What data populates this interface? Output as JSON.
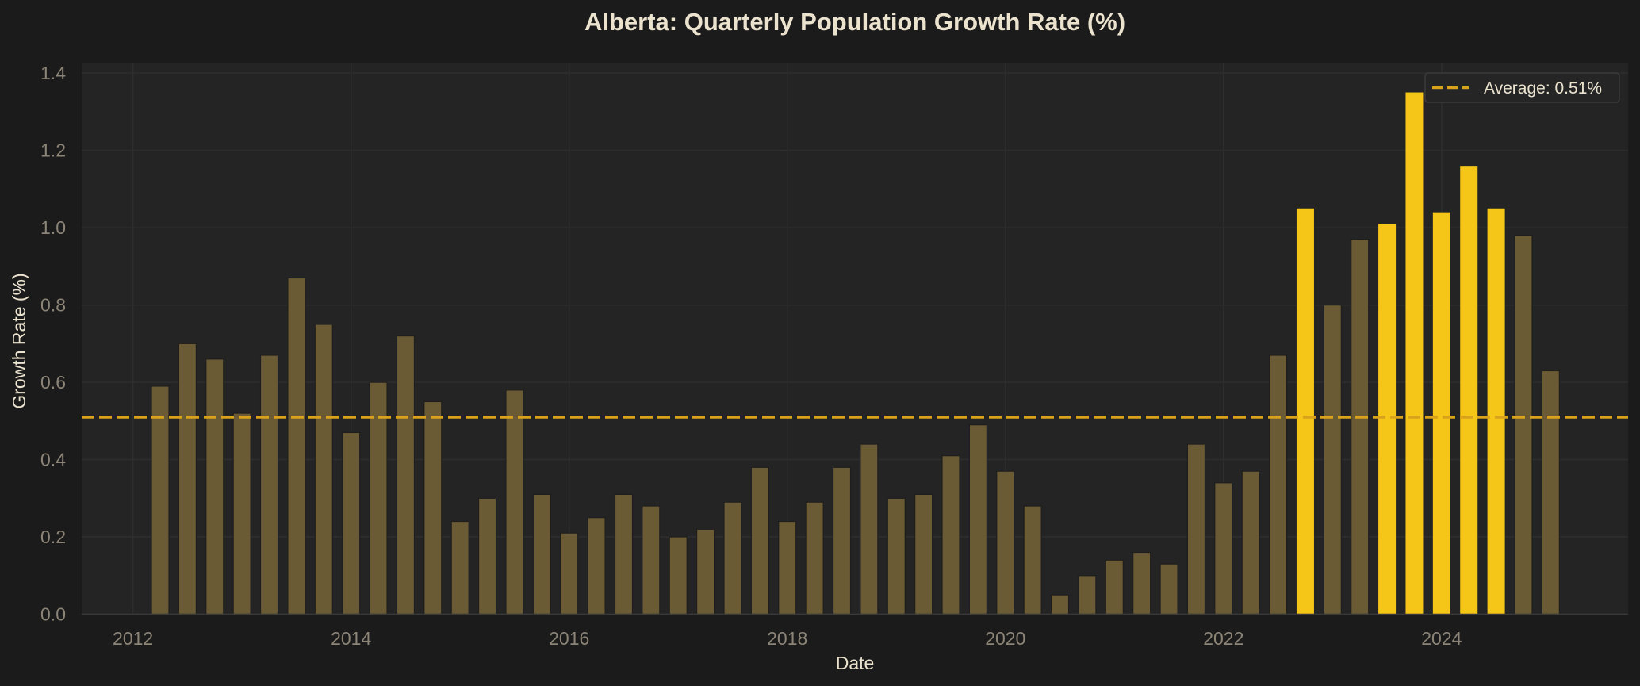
{
  "chart_data": {
    "type": "bar",
    "title": "Alberta: Quarterly Population Growth Rate (%)",
    "xlabel": "Date",
    "ylabel": "Growth Rate (%)",
    "ylim": [
      0,
      1.425
    ],
    "xlim": [
      2011.53,
      2025.71
    ],
    "yticks": [
      0.0,
      0.2,
      0.4,
      0.6,
      0.8,
      1.0,
      1.2,
      1.4
    ],
    "ytick_labels": [
      "0.0",
      "0.2",
      "0.4",
      "0.6",
      "0.8",
      "1.0",
      "1.2",
      "1.4"
    ],
    "xticks": [
      2012,
      2014,
      2016,
      2018,
      2020,
      2022,
      2024
    ],
    "xtick_labels": [
      "2012",
      "2014",
      "2016",
      "2018",
      "2020",
      "2022",
      "2024"
    ],
    "grid": true,
    "legend": {
      "position": "upper right",
      "entries": [
        {
          "label": "Average: 0.51%",
          "style": "dashed-line",
          "color": "#d9a21b"
        }
      ]
    },
    "average": 0.51,
    "highlight_rule": "value > 1.0",
    "colors": {
      "bar": "#6b5b35",
      "bar_highlight": "#f5c518",
      "bar_edge": "#1e1e1e",
      "average_line": "#d9a21b",
      "plot_bg": "#242424",
      "figure_bg": "#1b1b1b",
      "grid": "#2e2e2e"
    },
    "categories": [
      "2012-Q2",
      "2012-Q3",
      "2012-Q4",
      "2013-Q1",
      "2013-Q2",
      "2013-Q3",
      "2013-Q4",
      "2014-Q1",
      "2014-Q2",
      "2014-Q3",
      "2014-Q4",
      "2015-Q1",
      "2015-Q2",
      "2015-Q3",
      "2015-Q4",
      "2016-Q1",
      "2016-Q2",
      "2016-Q3",
      "2016-Q4",
      "2017-Q1",
      "2017-Q2",
      "2017-Q3",
      "2017-Q4",
      "2018-Q1",
      "2018-Q2",
      "2018-Q3",
      "2018-Q4",
      "2019-Q1",
      "2019-Q2",
      "2019-Q3",
      "2019-Q4",
      "2020-Q1",
      "2020-Q2",
      "2020-Q3",
      "2020-Q4",
      "2021-Q1",
      "2021-Q2",
      "2021-Q3",
      "2021-Q4",
      "2022-Q1",
      "2022-Q2",
      "2022-Q3",
      "2022-Q4",
      "2023-Q1",
      "2023-Q2",
      "2023-Q3",
      "2023-Q4",
      "2024-Q1",
      "2024-Q2",
      "2024-Q3",
      "2024-Q4",
      "2025-Q1"
    ],
    "x": [
      2012.25,
      2012.5,
      2012.75,
      2013.0,
      2013.25,
      2013.5,
      2013.75,
      2014.0,
      2014.25,
      2014.5,
      2014.75,
      2015.0,
      2015.25,
      2015.5,
      2015.75,
      2016.0,
      2016.25,
      2016.5,
      2016.75,
      2017.0,
      2017.25,
      2017.5,
      2017.75,
      2018.0,
      2018.25,
      2018.5,
      2018.75,
      2019.0,
      2019.25,
      2019.5,
      2019.75,
      2020.0,
      2020.25,
      2020.5,
      2020.75,
      2021.0,
      2021.25,
      2021.5,
      2021.75,
      2022.0,
      2022.25,
      2022.5,
      2022.75,
      2023.0,
      2023.25,
      2023.5,
      2023.75,
      2024.0,
      2024.25,
      2024.5,
      2024.75,
      2025.0
    ],
    "values": [
      0.59,
      0.7,
      0.66,
      0.52,
      0.67,
      0.87,
      0.75,
      0.47,
      0.6,
      0.72,
      0.55,
      0.24,
      0.3,
      0.58,
      0.31,
      0.21,
      0.25,
      0.31,
      0.28,
      0.2,
      0.22,
      0.29,
      0.38,
      0.24,
      0.29,
      0.38,
      0.44,
      0.3,
      0.31,
      0.41,
      0.49,
      0.37,
      0.28,
      0.05,
      0.1,
      0.14,
      0.16,
      0.13,
      0.44,
      0.34,
      0.37,
      0.67,
      1.05,
      0.8,
      0.97,
      1.01,
      1.35,
      1.04,
      1.16,
      1.05,
      0.98,
      0.63
    ],
    "highlighted": [
      false,
      false,
      false,
      false,
      false,
      false,
      false,
      false,
      false,
      false,
      false,
      false,
      false,
      false,
      false,
      false,
      false,
      false,
      false,
      false,
      false,
      false,
      false,
      false,
      false,
      false,
      false,
      false,
      false,
      false,
      false,
      false,
      false,
      false,
      false,
      false,
      false,
      false,
      false,
      false,
      false,
      false,
      true,
      false,
      false,
      true,
      true,
      true,
      true,
      true,
      false,
      false
    ]
  }
}
